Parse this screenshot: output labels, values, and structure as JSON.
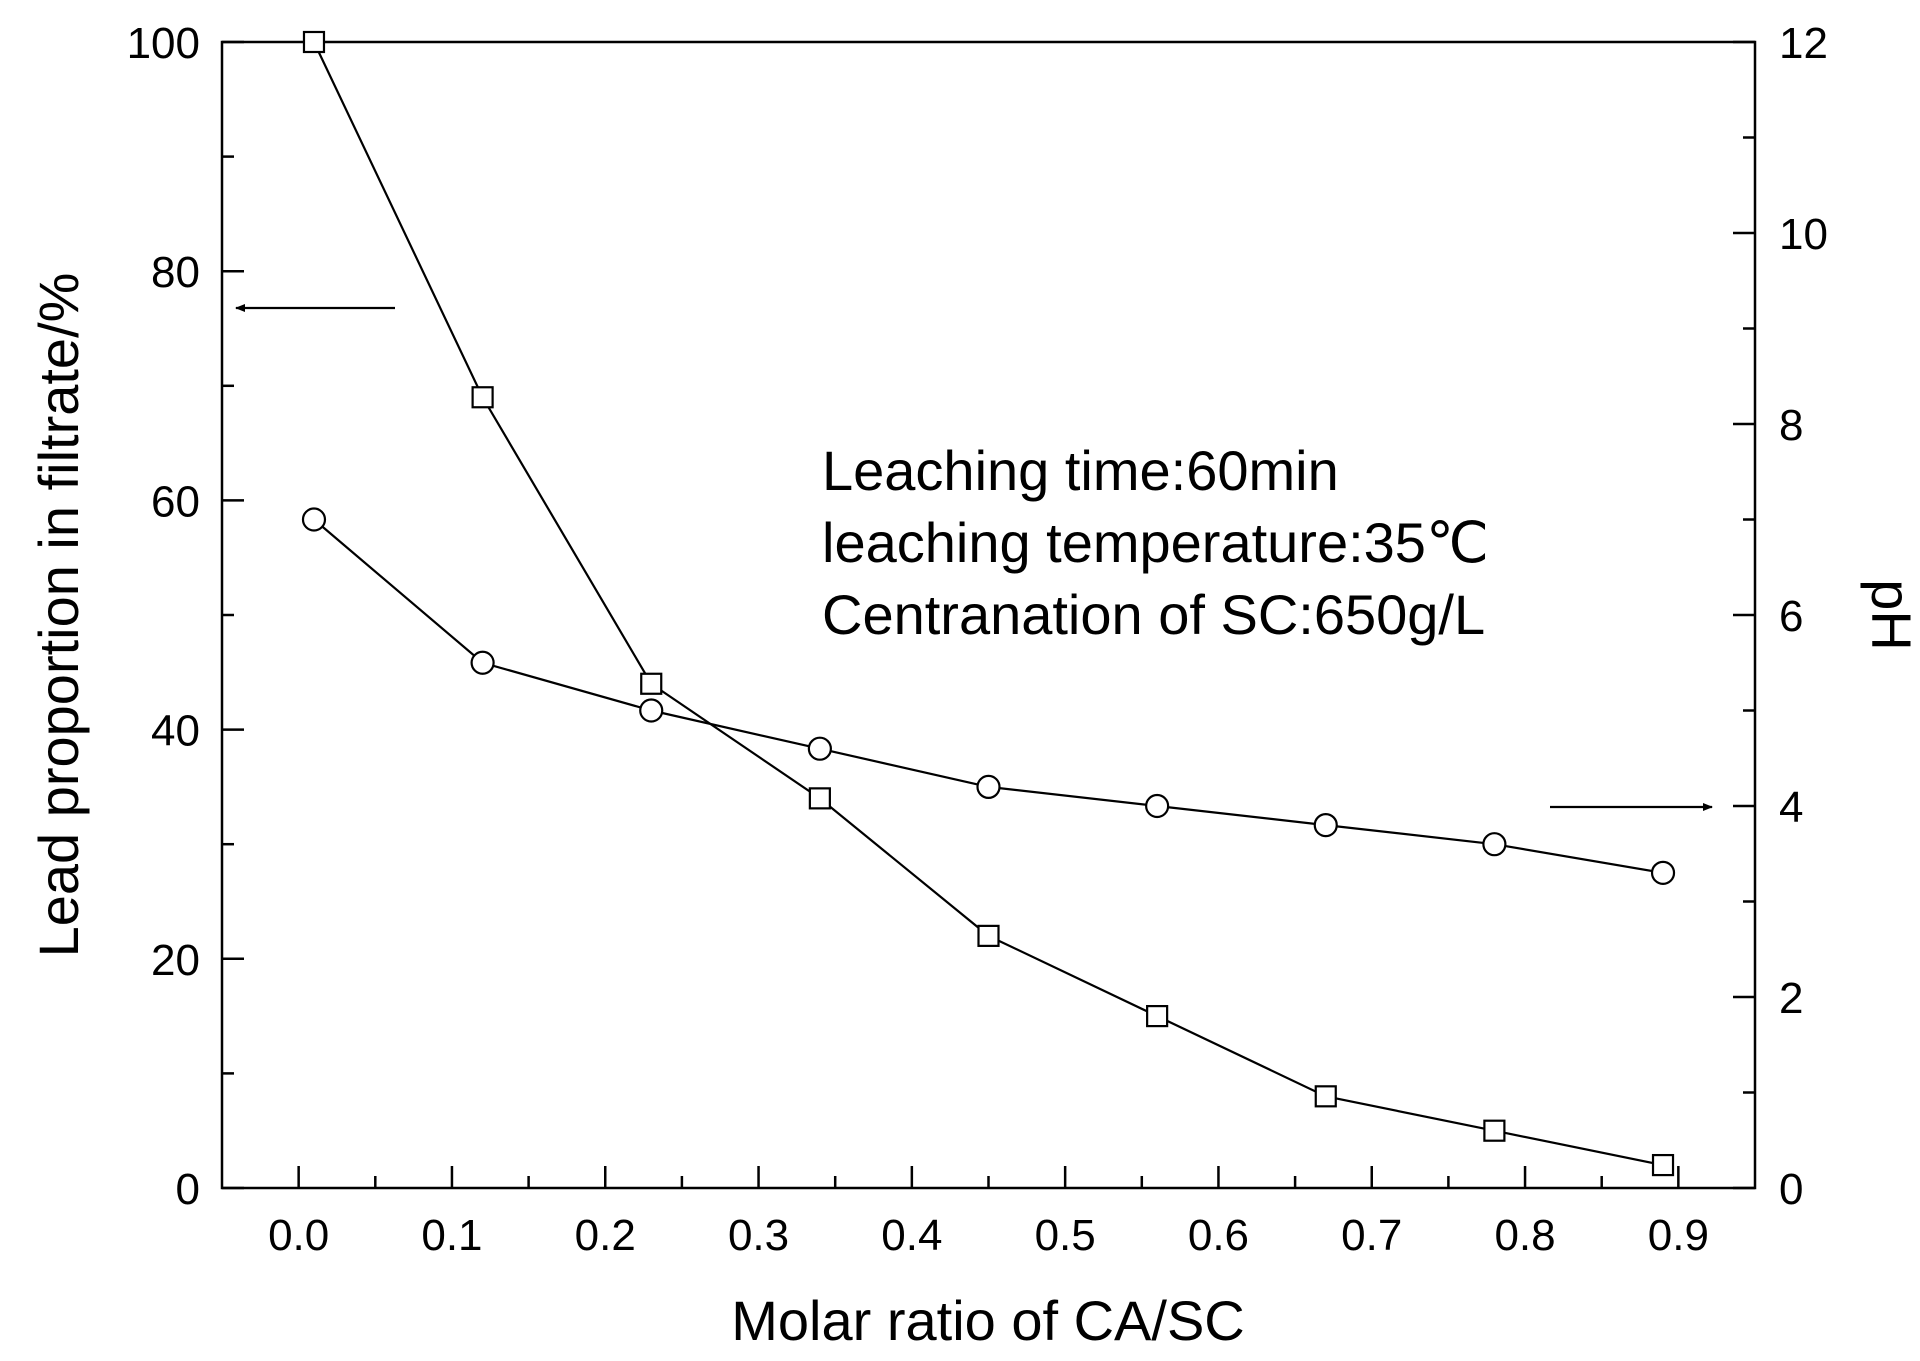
{
  "chart_data": {
    "type": "line",
    "title": "",
    "xlabel": "Molar ratio of CA/SC",
    "ylabel_left": "Lead proportion in filtrate/%",
    "ylabel_right": "pH",
    "xlim": [
      -0.05,
      0.95
    ],
    "ylim_left": [
      0,
      100
    ],
    "ylim_right": [
      0,
      12
    ],
    "x_ticks": [
      0.0,
      0.1,
      0.2,
      0.3,
      0.4,
      0.5,
      0.6,
      0.7,
      0.8,
      0.9
    ],
    "x_tick_labels": [
      "0.0",
      "0.1",
      "0.2",
      "0.3",
      "0.4",
      "0.5",
      "0.6",
      "0.7",
      "0.8",
      "0.9"
    ],
    "y_left_ticks": [
      0,
      20,
      40,
      60,
      80,
      100
    ],
    "y_left_tick_labels": [
      "0",
      "20",
      "40",
      "60",
      "80",
      "100"
    ],
    "y_right_ticks": [
      0,
      2,
      4,
      6,
      8,
      10,
      12
    ],
    "y_right_tick_labels": [
      "0",
      "2",
      "4",
      "6",
      "8",
      "10",
      "12"
    ],
    "series": [
      {
        "name": "Lead proportion in filtrate",
        "axis": "left",
        "marker": "square",
        "x": [
          0.01,
          0.12,
          0.23,
          0.34,
          0.45,
          0.56,
          0.67,
          0.78,
          0.89
        ],
        "values": [
          100,
          69,
          44,
          34,
          22,
          15,
          8,
          5,
          2
        ]
      },
      {
        "name": "pH",
        "axis": "right",
        "marker": "circle",
        "x": [
          0.01,
          0.12,
          0.23,
          0.34,
          0.45,
          0.56,
          0.67,
          0.78,
          0.89
        ],
        "values": [
          7.0,
          5.5,
          5.0,
          4.6,
          4.2,
          4.0,
          3.8,
          3.6,
          3.3
        ]
      }
    ],
    "annotations": [
      "Leaching time:60min",
      "leaching temperature:35℃",
      "Centranation of SC:650g/L"
    ],
    "arrows": [
      {
        "points_to": "left axis",
        "series": "Lead proportion in filtrate"
      },
      {
        "points_to": "right axis",
        "series": "pH"
      }
    ]
  }
}
